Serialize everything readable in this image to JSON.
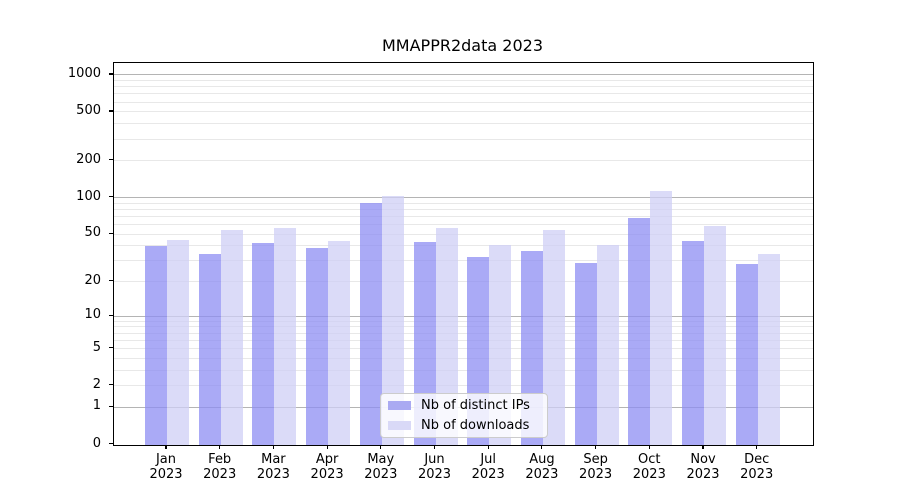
{
  "chart_data": {
    "type": "bar",
    "title": "MMAPPR2data 2023",
    "categories": [
      "Jan",
      "Feb",
      "Mar",
      "Apr",
      "May",
      "Jun",
      "Jul",
      "Aug",
      "Sep",
      "Oct",
      "Nov",
      "Dec"
    ],
    "year": "2023",
    "series": [
      {
        "name": "Nb of distinct IPs",
        "values": [
          40,
          34,
          42,
          38,
          90,
          43,
          32,
          36,
          29,
          68,
          44,
          28
        ],
        "fill": "rgba(142,142,243,0.75)",
        "swatch": "#aaaaf2"
      },
      {
        "name": "Nb of downloads",
        "values": [
          45,
          54,
          56,
          44,
          103,
          56,
          41,
          54,
          41,
          114,
          58,
          34
        ],
        "fill": "rgba(207,207,246,0.75)",
        "swatch": "#d9d9f7"
      }
    ],
    "xlabel": "",
    "ylabel": "",
    "yticks": [
      0,
      1,
      2,
      5,
      10,
      20,
      50,
      100,
      200,
      500,
      1000
    ],
    "yscale": "log10(value+1)",
    "ylim": [
      0,
      1311
    ],
    "grid": {
      "on": true,
      "major_values": [
        1,
        10,
        100,
        1000
      ],
      "major_color": "#b4b4b4",
      "minor_color": "#e8e8e8"
    },
    "legend": {
      "position": "lower center",
      "entries": [
        "Nb of distinct IPs",
        "Nb of downloads"
      ]
    }
  }
}
